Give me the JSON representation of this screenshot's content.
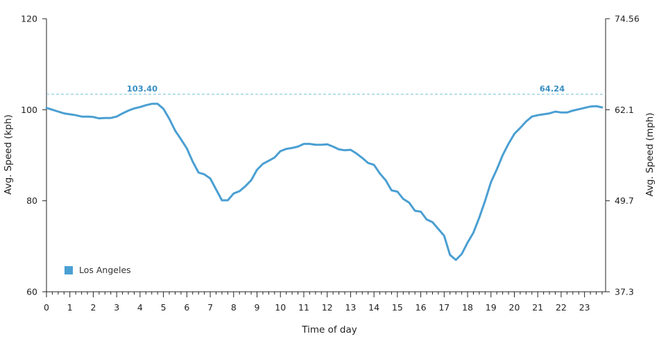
{
  "colors": {
    "series": "#4a9fd2",
    "reference": "#6fbcd6",
    "reference_label": "#3a8fc4",
    "axis": "#222222"
  },
  "chart_data": {
    "type": "line",
    "title": "",
    "xlabel": "Time of day",
    "ylabel": "Avg. Speed (kph)",
    "y2label": "Avg. Speed (mph)",
    "xlim": [
      0,
      23.9
    ],
    "ylim": [
      60,
      120
    ],
    "x_ticks": [
      0,
      1,
      2,
      3,
      4,
      5,
      6,
      7,
      8,
      9,
      10,
      11,
      12,
      13,
      14,
      15,
      16,
      17,
      18,
      19,
      20,
      21,
      22,
      23
    ],
    "y_ticks": [
      60,
      80,
      100,
      120
    ],
    "y2_ticks": [
      "37.3",
      "49.7",
      "62.1",
      "74.56"
    ],
    "grid": false,
    "legend": {
      "position": "bottom-left",
      "entries": [
        "Los Angeles"
      ]
    },
    "reference_line": {
      "y": 103.4,
      "label_left": "103.40",
      "label_right": "64.24",
      "style": "dashed"
    },
    "series": [
      {
        "name": "Los Angeles",
        "x": [
          0,
          0.25,
          0.5,
          0.75,
          1,
          1.25,
          1.5,
          1.75,
          2,
          2.25,
          2.5,
          2.75,
          3,
          3.25,
          3.5,
          3.75,
          4,
          4.25,
          4.5,
          4.75,
          5,
          5.25,
          5.5,
          5.75,
          6,
          6.25,
          6.5,
          6.75,
          7,
          7.25,
          7.5,
          7.75,
          8,
          8.25,
          8.5,
          8.75,
          9,
          9.25,
          9.5,
          9.75,
          10,
          10.25,
          10.5,
          10.75,
          11,
          11.25,
          11.5,
          11.75,
          12,
          12.25,
          12.5,
          12.75,
          13,
          13.25,
          13.5,
          13.75,
          14,
          14.25,
          14.5,
          14.75,
          15,
          15.25,
          15.5,
          15.75,
          16,
          16.25,
          16.5,
          16.75,
          17,
          17.25,
          17.5,
          17.75,
          18,
          18.25,
          18.5,
          18.75,
          19,
          19.25,
          19.5,
          19.75,
          20,
          20.25,
          20.5,
          20.75,
          21,
          21.25,
          21.5,
          21.75,
          22,
          22.25,
          22.5,
          22.75,
          23,
          23.25,
          23.5,
          23.75
        ],
        "values": [
          100.4,
          100,
          99.6,
          99.2,
          99,
          98.8,
          98.5,
          98.5,
          98.4,
          98.1,
          98.2,
          98.2,
          98.5,
          99.2,
          99.8,
          100.3,
          100.6,
          101,
          101.3,
          101.3,
          100.2,
          98,
          95.4,
          93.5,
          91.5,
          88.6,
          86.2,
          85.8,
          84.9,
          82.5,
          80.1,
          80.1,
          81.6,
          82.1,
          83.2,
          84.5,
          86.8,
          88.1,
          88.8,
          89.5,
          90.9,
          91.4,
          91.6,
          91.9,
          92.5,
          92.5,
          92.3,
          92.3,
          92.4,
          91.9,
          91.3,
          91.1,
          91.2,
          90.4,
          89.4,
          88.3,
          87.9,
          86,
          84.5,
          82.3,
          82,
          80.4,
          79.6,
          77.8,
          77.6,
          75.9,
          75.3,
          73.8,
          72.3,
          68.1,
          67,
          68.3,
          70.8,
          73,
          76.3,
          80,
          84.1,
          86.9,
          90,
          92.5,
          94.7,
          96,
          97.4,
          98.5,
          98.8,
          99,
          99.2,
          99.6,
          99.4,
          99.4,
          99.8,
          100.1,
          100.4,
          100.7,
          100.8,
          100.5
        ]
      }
    ]
  }
}
